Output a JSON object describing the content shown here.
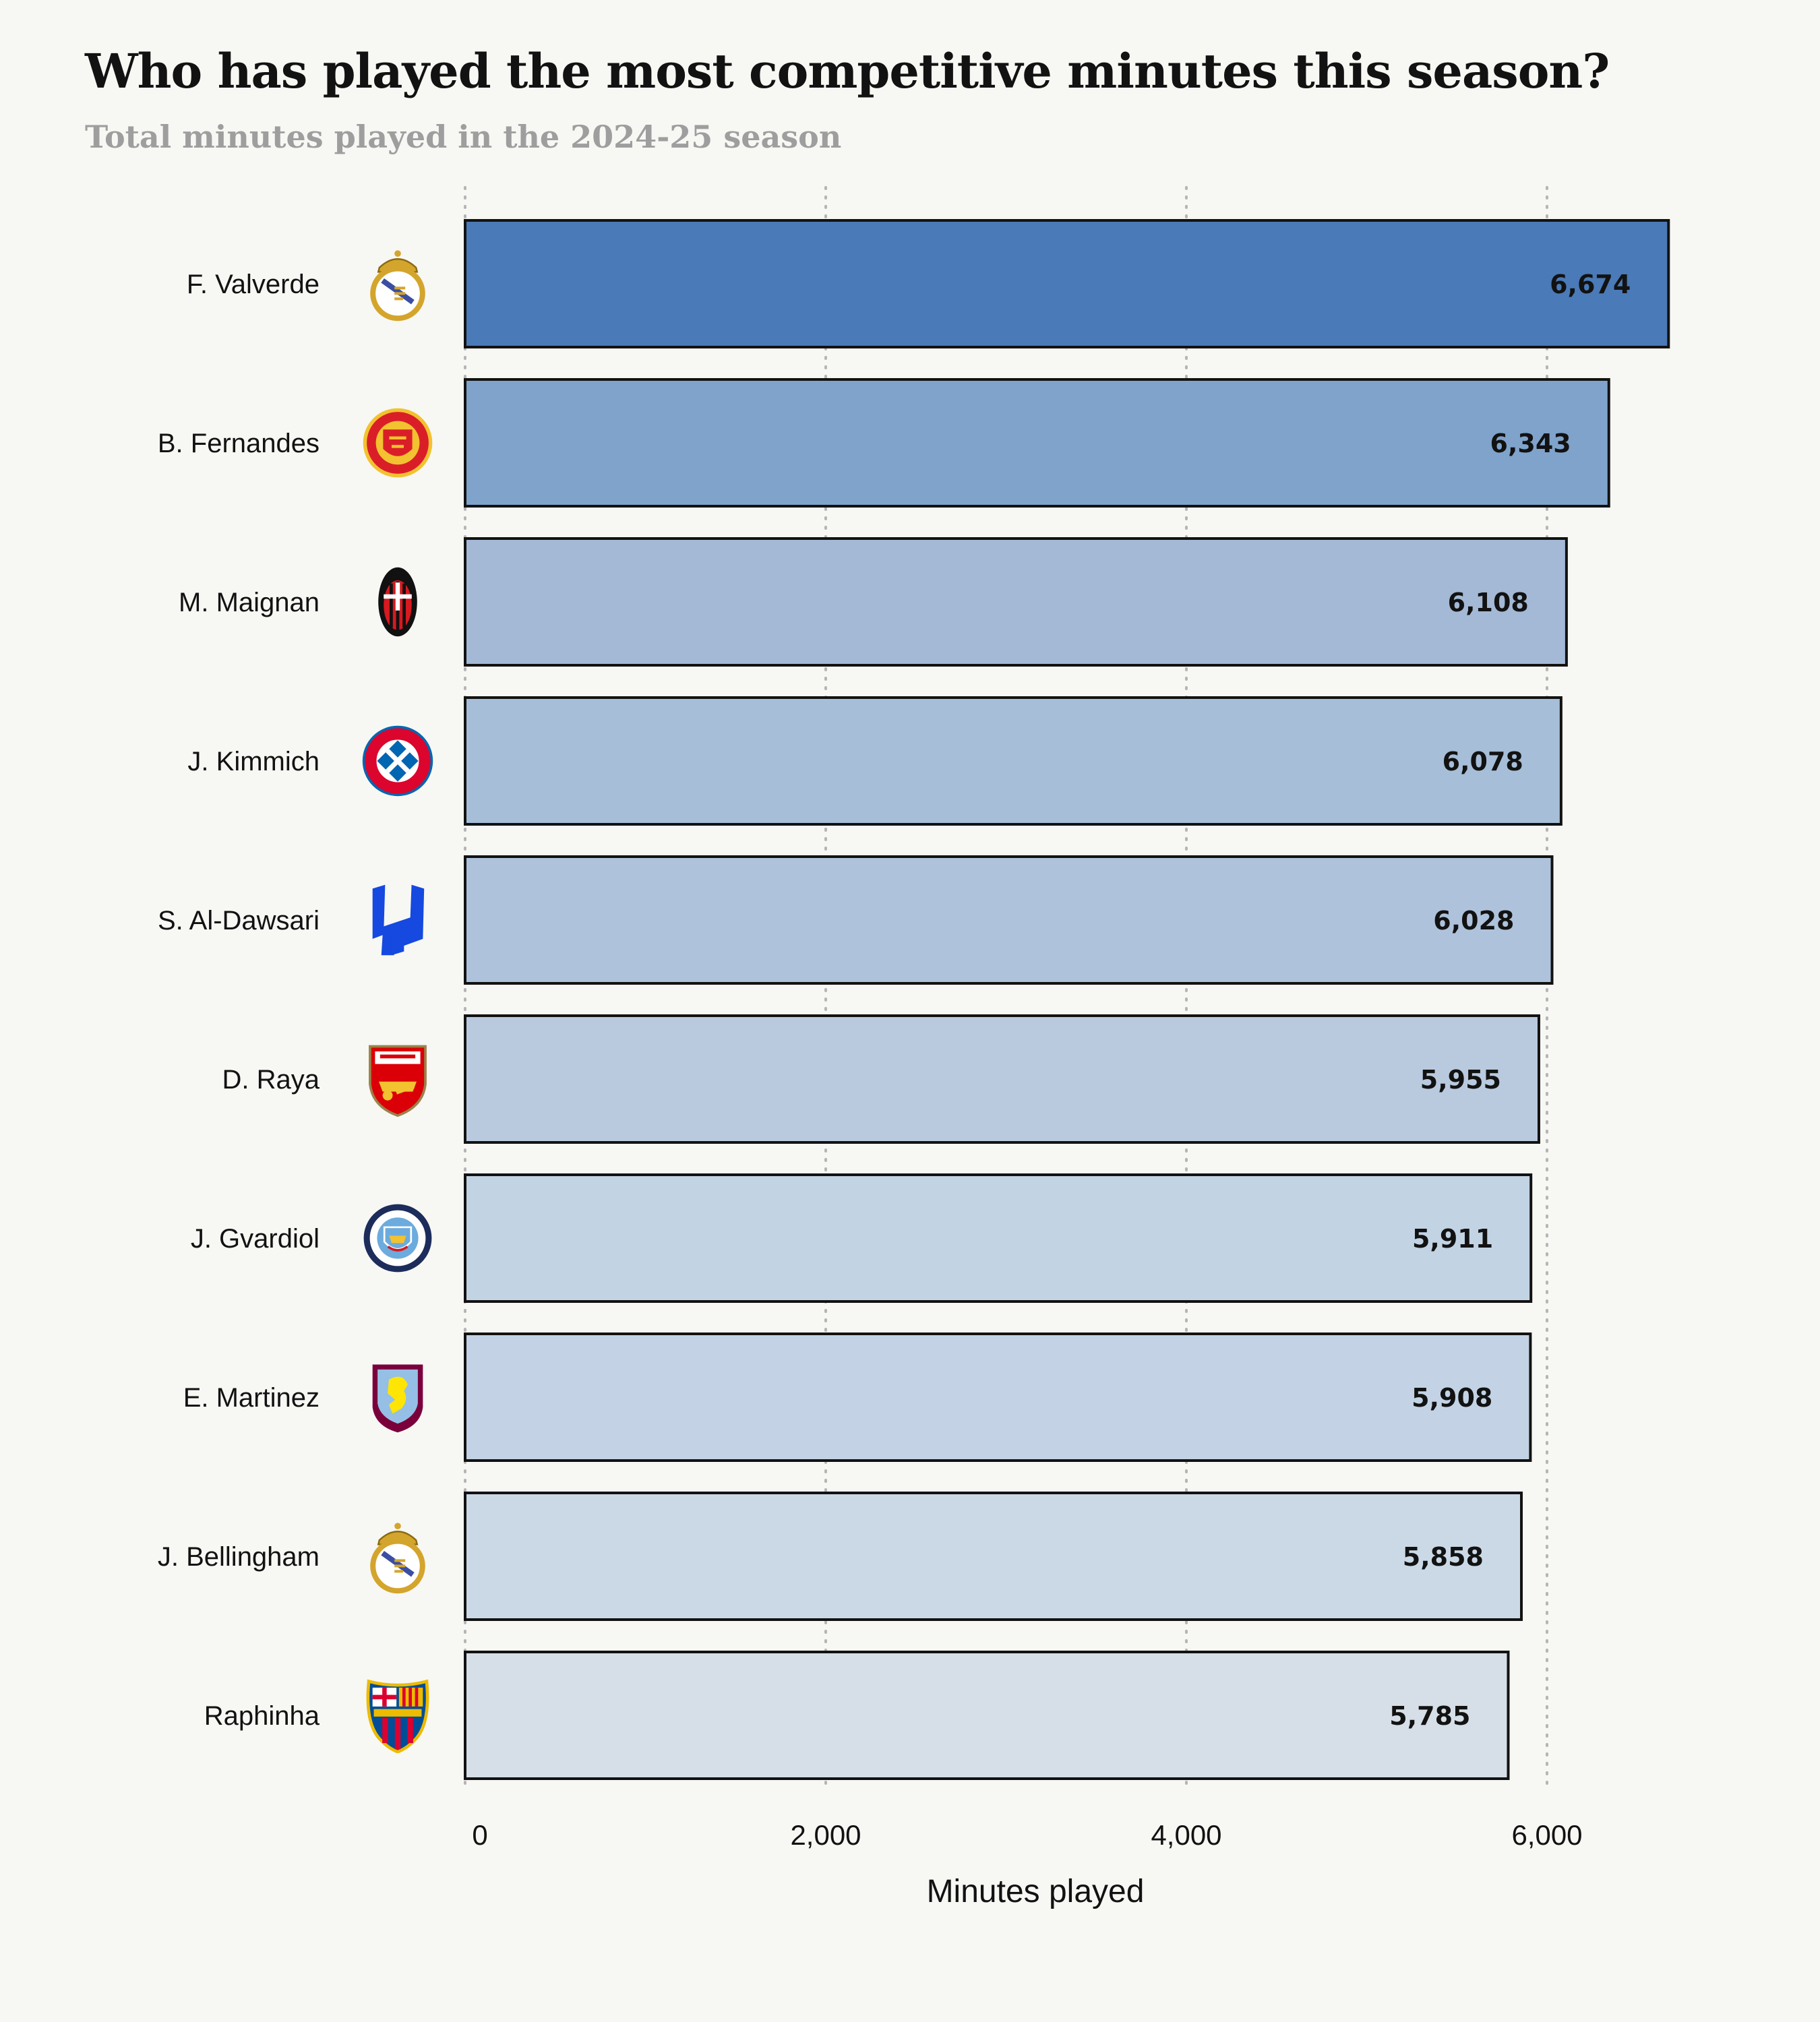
{
  "header": {
    "title": "Who has played the most competitive minutes this season?",
    "subtitle": "Total minutes played in the 2024-25 season"
  },
  "chart_data": {
    "type": "bar",
    "orientation": "horizontal",
    "title": "Who has played the most competitive minutes this season?",
    "subtitle": "Total minutes played in the 2024-25 season",
    "xlabel": "Minutes played",
    "ylabel": "",
    "xlim": [
      0,
      6800
    ],
    "xticks": [
      0,
      2000,
      4000,
      6000
    ],
    "xtick_labels": [
      "0",
      "2,000",
      "4,000",
      "6,000"
    ],
    "grid": "vertical dotted",
    "legend": "none",
    "categories": [
      "F. Valverde",
      "B. Fernandes",
      "M. Maignan",
      "J. Kimmich",
      "S. Al-Dawsari",
      "D. Raya",
      "J. Gvardiol",
      "E. Martinez",
      "J. Bellingham",
      "Raphinha"
    ],
    "values": [
      6674,
      6343,
      6108,
      6078,
      6028,
      5955,
      5911,
      5908,
      5858,
      5785
    ],
    "value_labels": [
      "6,674",
      "6,343",
      "6,108",
      "6,078",
      "6,028",
      "5,955",
      "5,911",
      "5,908",
      "5,858",
      "5,785"
    ],
    "club_icons": [
      "real-madrid-crest-icon",
      "manchester-united-crest-icon",
      "ac-milan-crest-icon",
      "bayern-munich-crest-icon",
      "al-hilal-crest-icon",
      "arsenal-crest-icon",
      "manchester-city-crest-icon",
      "aston-villa-crest-icon",
      "real-madrid-crest-icon",
      "barcelona-crest-icon"
    ],
    "bar_colors": [
      "#4a7ab7",
      "#7fa3cb",
      "#a3b9d5",
      "#a6bed8",
      "#aec2db",
      "#b9cadf",
      "#c2d3e4",
      "#c3d3e5",
      "#cbd9e7",
      "#d6dfe8"
    ]
  }
}
